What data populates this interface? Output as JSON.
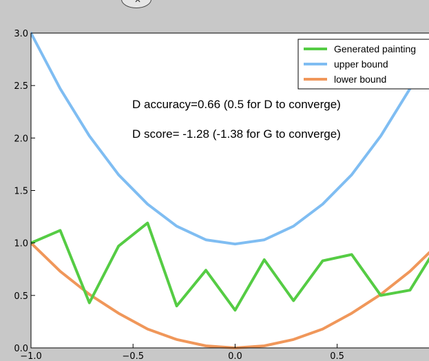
{
  "top_control": {
    "icon": "close-icon",
    "glyph": "✕"
  },
  "chart_data": {
    "type": "line",
    "xlim": [
      -1.0,
      0.95
    ],
    "ylim": [
      0.0,
      3.0
    ],
    "x_ticks": [
      -1.0,
      -0.5,
      0.0,
      0.5
    ],
    "x_tick_labels": [
      "−1.0",
      "−0.5",
      "0.0",
      "0.5"
    ],
    "y_ticks": [
      0.0,
      0.5,
      1.0,
      1.5,
      2.0,
      2.5,
      3.0
    ],
    "y_tick_labels": [
      "0.0",
      "0.5",
      "1.0",
      "1.5",
      "2.0",
      "2.5",
      "3.0"
    ],
    "grid": false,
    "legend_position": "top-right",
    "annotations": [
      "D accuracy=0.66 (0.5 for D to converge)",
      "D score= -1.28 (-1.38 for G to converge)"
    ],
    "x": [
      -1.0,
      -0.857,
      -0.714,
      -0.571,
      -0.429,
      -0.286,
      -0.143,
      0.0,
      0.143,
      0.286,
      0.429,
      0.571,
      0.714,
      0.857,
      1.0
    ],
    "series": [
      {
        "name": "Generated painting",
        "color": "#55cc44",
        "values": [
          1.0,
          1.12,
          0.43,
          0.97,
          1.19,
          0.4,
          0.74,
          0.36,
          0.84,
          0.45,
          0.83,
          0.89,
          0.5,
          0.55,
          1.0
        ]
      },
      {
        "name": "upper bound",
        "color": "#7fbdf2",
        "values": [
          3.0,
          2.47,
          2.02,
          1.65,
          1.37,
          1.16,
          1.03,
          0.99,
          1.03,
          1.16,
          1.37,
          1.65,
          2.02,
          2.47,
          3.0
        ]
      },
      {
        "name": "lower bound",
        "color": "#f0975a",
        "values": [
          1.0,
          0.73,
          0.51,
          0.33,
          0.18,
          0.08,
          0.02,
          0.0,
          0.02,
          0.08,
          0.18,
          0.33,
          0.51,
          0.73,
          1.0
        ]
      }
    ]
  }
}
